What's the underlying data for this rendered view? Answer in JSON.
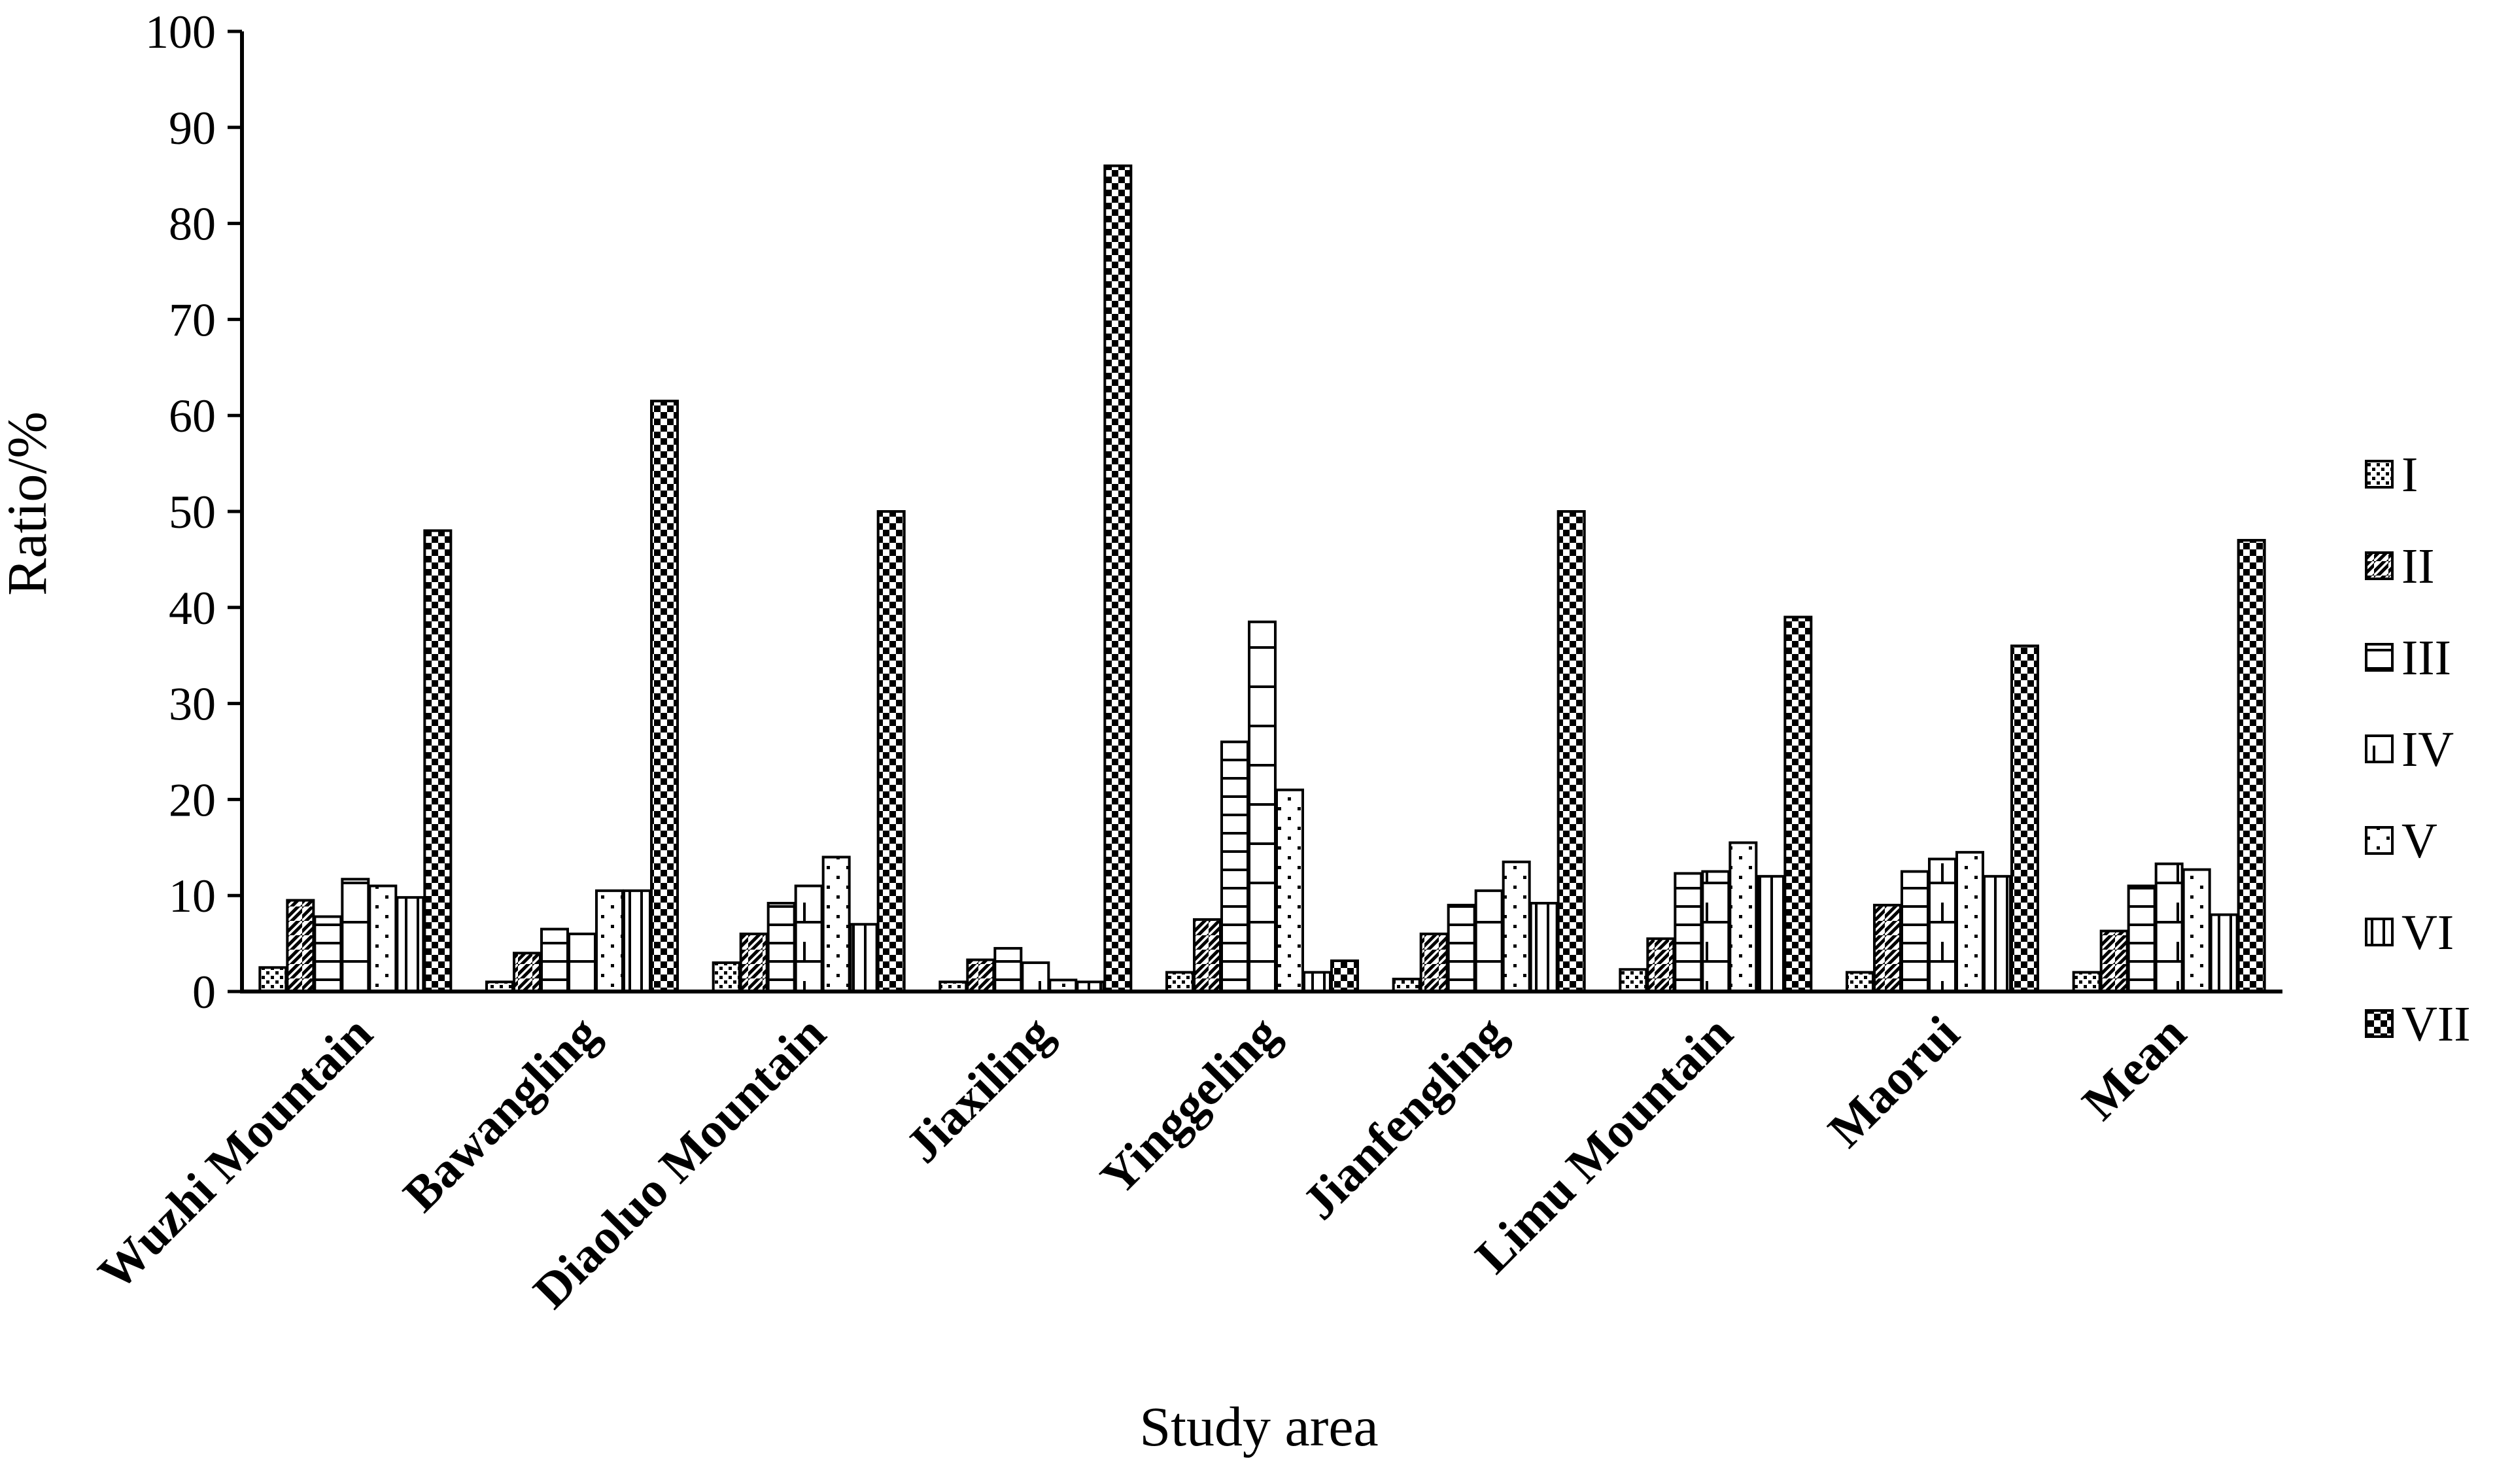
{
  "chart_data": {
    "type": "bar",
    "xlabel": "Study area",
    "ylabel": "Ratio/%",
    "ylim": [
      0,
      100
    ],
    "yticks": [
      0,
      10,
      20,
      30,
      40,
      50,
      60,
      70,
      80,
      90,
      100
    ],
    "categories": [
      "Wuzhi Mountain",
      "Bawangling",
      "Diaoluo Mountain",
      "Jiaxiling",
      "Yinggeling",
      "Jianfengling",
      "Limu Mountain",
      "Maorui",
      "Mean"
    ],
    "series": [
      {
        "name": "I",
        "pattern": "dots",
        "values": [
          2.5,
          1.0,
          3.0,
          1.0,
          2.0,
          1.3,
          2.3,
          2.0,
          2.0
        ]
      },
      {
        "name": "II",
        "pattern": "diagonal",
        "values": [
          9.5,
          4.0,
          6.0,
          3.3,
          7.5,
          6.0,
          5.5,
          9.0,
          6.3
        ]
      },
      {
        "name": "III",
        "pattern": "horizontal",
        "values": [
          7.8,
          6.5,
          9.2,
          4.5,
          26.0,
          9.0,
          12.3,
          12.5,
          11.0
        ]
      },
      {
        "name": "IV",
        "pattern": "brick",
        "values": [
          11.7,
          6.0,
          11.0,
          3.0,
          38.5,
          10.5,
          12.5,
          13.8,
          13.3
        ]
      },
      {
        "name": "V",
        "pattern": "sparse-dots",
        "values": [
          11.0,
          10.5,
          14.0,
          1.2,
          21.0,
          13.5,
          15.5,
          14.5,
          12.7
        ]
      },
      {
        "name": "VI",
        "pattern": "vertical",
        "values": [
          9.8,
          10.5,
          7.0,
          1.0,
          2.0,
          9.2,
          12.0,
          12.0,
          8.0
        ]
      },
      {
        "name": "VII",
        "pattern": "checker",
        "values": [
          48.0,
          61.5,
          50.0,
          86.0,
          3.2,
          50.0,
          39.0,
          36.0,
          47.0
        ]
      }
    ],
    "grid": false,
    "legend": "right"
  }
}
